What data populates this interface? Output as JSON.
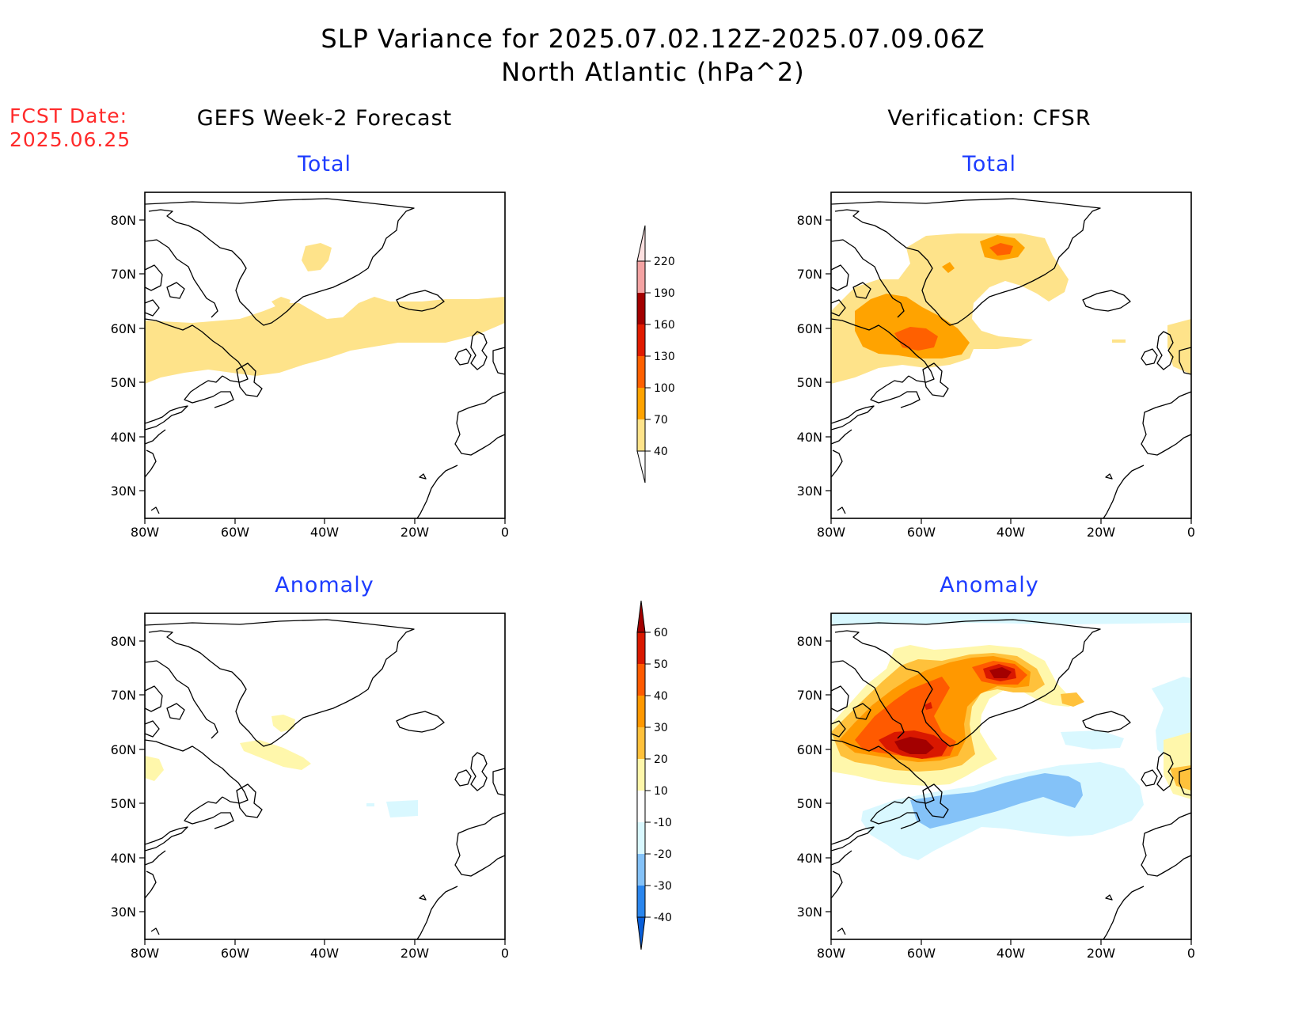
{
  "header": {
    "title_line1": "SLP Variance for 2025.07.02.12Z-2025.07.09.06Z",
    "title_line2": "North Atlantic (hPa^2)"
  },
  "fcst": {
    "label": "FCST Date:",
    "date": "2025.06.25"
  },
  "columns": {
    "left_title": "GEFS Week-2 Forecast",
    "right_title": "Verification: CFSR"
  },
  "panels": [
    {
      "id": "fcst-total",
      "subtitle": "Total"
    },
    {
      "id": "obs-total",
      "subtitle": "Total"
    },
    {
      "id": "fcst-anomaly",
      "subtitle": "Anomaly"
    },
    {
      "id": "obs-anomaly",
      "subtitle": "Anomaly"
    }
  ],
  "axes": {
    "lat_labels": [
      "80N",
      "70N",
      "60N",
      "50N",
      "40N",
      "30N"
    ],
    "lon_labels": [
      "80W",
      "60W",
      "40W",
      "20W",
      "0"
    ]
  },
  "colorbar_total": {
    "levels": [
      "40",
      "70",
      "100",
      "130",
      "160",
      "190",
      "220"
    ],
    "colors": [
      "#fee38a",
      "#ffa300",
      "#ff6000",
      "#e11b00",
      "#a30000",
      "#f4a3a3",
      "#fde0e0"
    ]
  },
  "colorbar_anomaly": {
    "levels": [
      "-40",
      "-30",
      "-20",
      "-10",
      "10",
      "20",
      "30",
      "40",
      "50",
      "60"
    ],
    "colors": [
      "#0a5fd9",
      "#2a86ee",
      "#84c2f8",
      "#d9f8ff",
      "#ffffff",
      "#fff7ab",
      "#ffc13b",
      "#ff9800",
      "#ff5a00",
      "#d91800",
      "#a30000"
    ]
  }
}
